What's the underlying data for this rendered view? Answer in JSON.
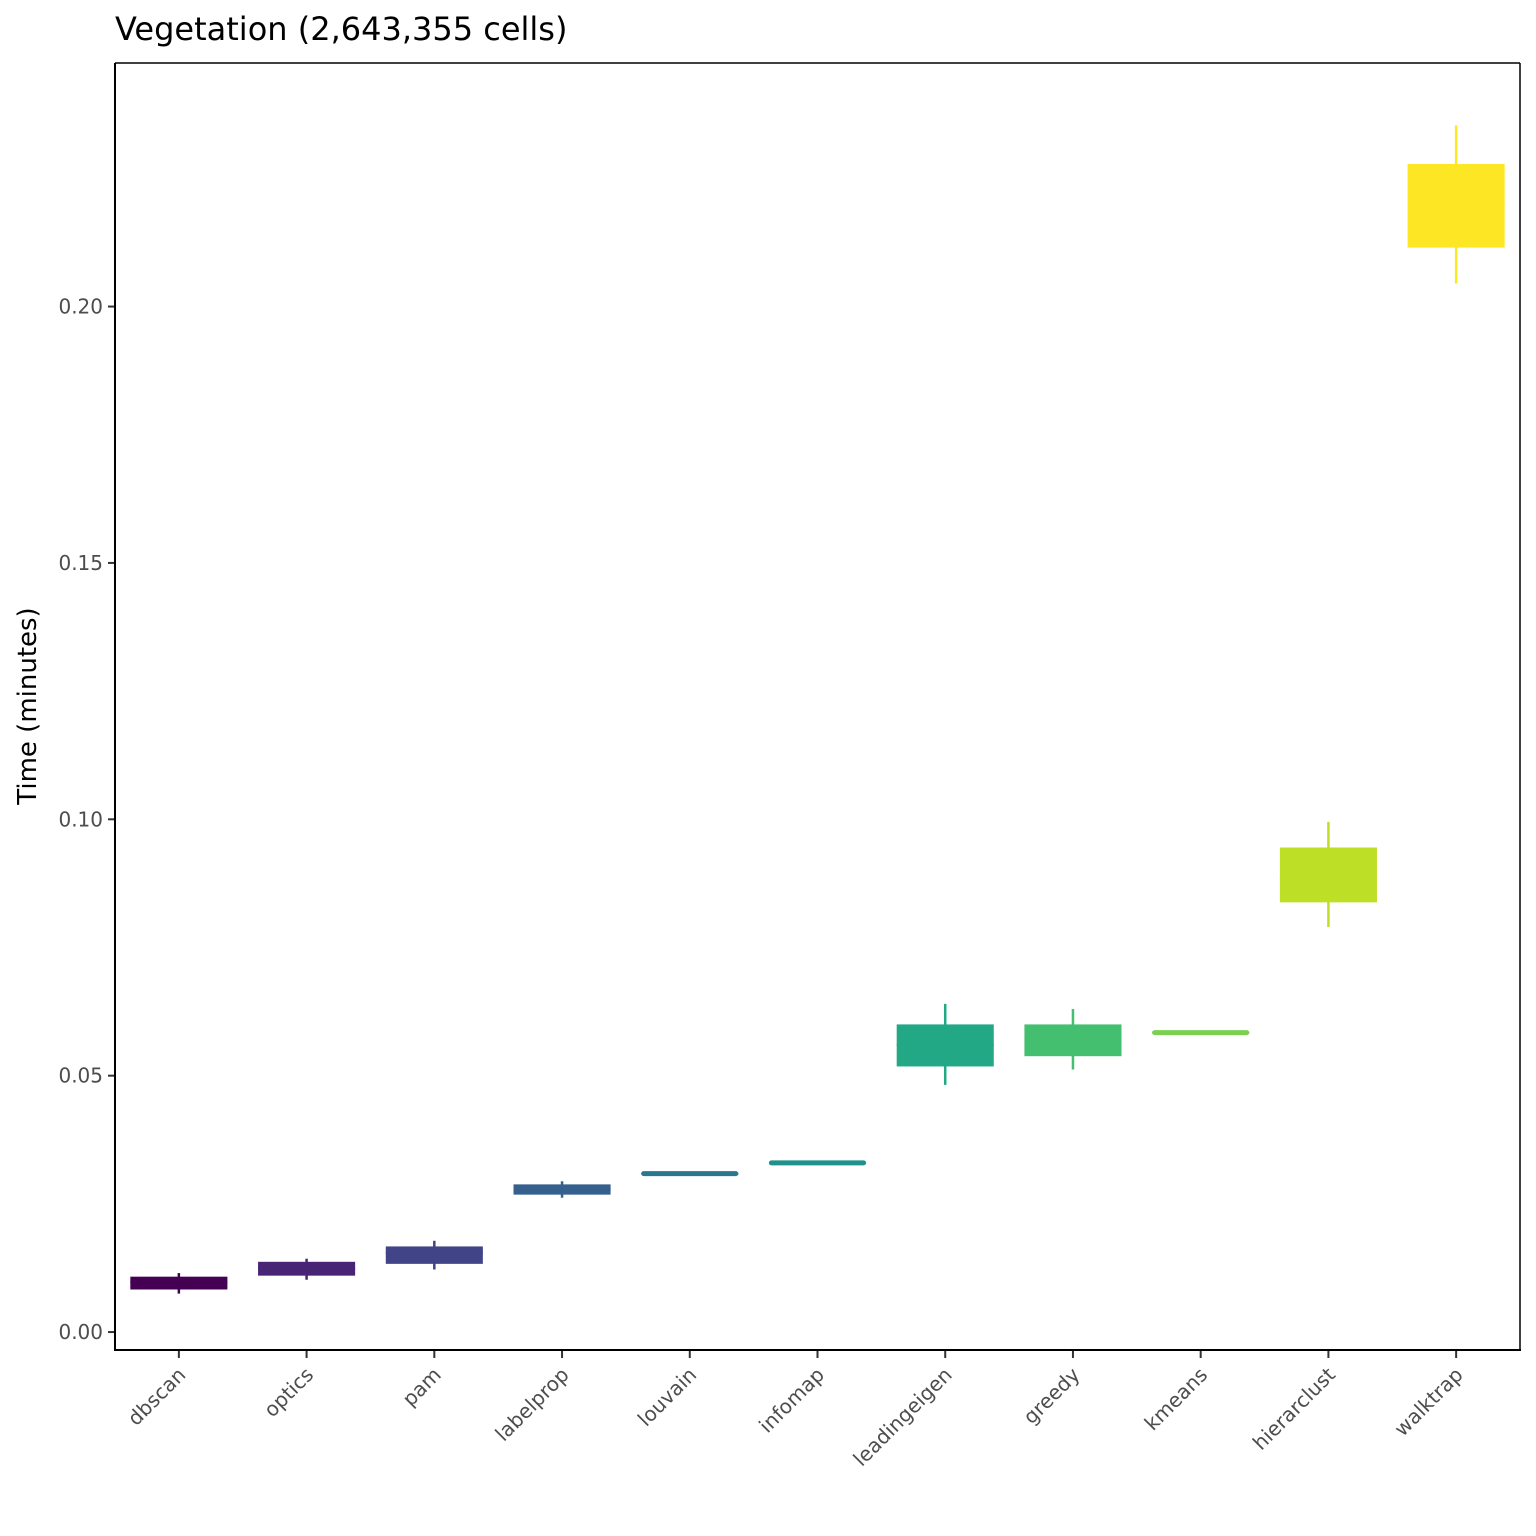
{
  "chart_data": {
    "type": "boxplot",
    "title": "Vegetation (2,643,355 cells)",
    "xlabel": "",
    "ylabel": "Time (minutes)",
    "ylim": [
      -0.0035,
      0.2475
    ],
    "yticks": [
      0.0,
      0.05,
      0.1,
      0.15,
      0.2
    ],
    "ytick_labels": [
      "0.00",
      "0.05",
      "0.10",
      "0.15",
      "0.20"
    ],
    "grid": false,
    "legend": "none",
    "categories": [
      "dbscan",
      "optics",
      "pam",
      "labelprop",
      "louvain",
      "infomap",
      "leadingeigen",
      "greedy",
      "kmeans",
      "hierarclust",
      "walktrap"
    ],
    "series": [
      {
        "category": "dbscan",
        "min": 0.0075,
        "q1": 0.0083,
        "median": 0.0097,
        "q3": 0.0108,
        "max": 0.0115,
        "color": "#440154"
      },
      {
        "category": "optics",
        "min": 0.0102,
        "q1": 0.011,
        "median": 0.0124,
        "q3": 0.0137,
        "max": 0.0143,
        "color": "#482475"
      },
      {
        "category": "pam",
        "min": 0.0122,
        "q1": 0.0133,
        "median": 0.0155,
        "q3": 0.0167,
        "max": 0.0178,
        "color": "#414487"
      },
      {
        "category": "labelprop",
        "min": 0.0262,
        "q1": 0.0268,
        "median": 0.0278,
        "q3": 0.0288,
        "max": 0.0294,
        "color": "#355f8d"
      },
      {
        "category": "louvain",
        "min": 0.0305,
        "q1": 0.0307,
        "median": 0.0309,
        "q3": 0.0311,
        "max": 0.0313,
        "color": "#2a788e"
      },
      {
        "category": "infomap",
        "min": 0.0326,
        "q1": 0.0328,
        "median": 0.033,
        "q3": 0.0332,
        "max": 0.0334,
        "color": "#21918c"
      },
      {
        "category": "leadingeigen",
        "min": 0.0482,
        "q1": 0.0518,
        "median": 0.056,
        "q3": 0.06,
        "max": 0.064,
        "color": "#22a884"
      },
      {
        "category": "greedy",
        "min": 0.0512,
        "q1": 0.0538,
        "median": 0.057,
        "q3": 0.06,
        "max": 0.063,
        "color": "#44bf70"
      },
      {
        "category": "kmeans",
        "min": 0.058,
        "q1": 0.0582,
        "median": 0.0584,
        "q3": 0.0586,
        "max": 0.0588,
        "color": "#7ad151"
      },
      {
        "category": "hierarclust",
        "min": 0.079,
        "q1": 0.0838,
        "median": 0.0885,
        "q3": 0.0945,
        "max": 0.0995,
        "color": "#bddf26"
      },
      {
        "category": "walktrap",
        "min": 0.2045,
        "q1": 0.2115,
        "median": 0.22,
        "q3": 0.2278,
        "max": 0.2353,
        "color": "#fde725"
      }
    ]
  }
}
